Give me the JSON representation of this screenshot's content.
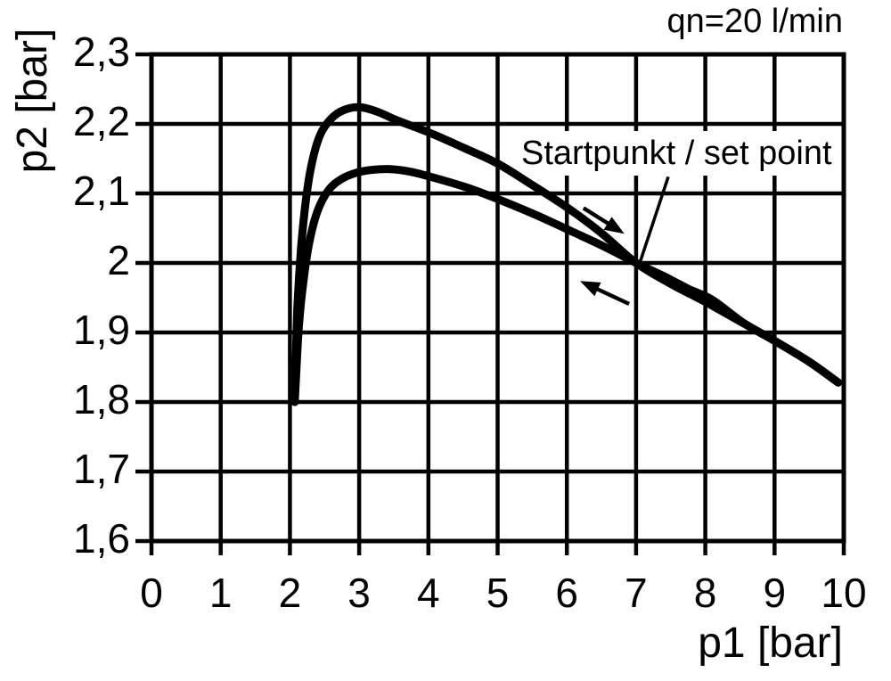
{
  "page": {
    "background": "#ffffff",
    "foreground": "#000000"
  },
  "chart_data": {
    "type": "line",
    "title": "qn=20 l/min",
    "xlabel": "p1 [bar]",
    "ylabel": "p2 [bar]",
    "xlim": [
      0,
      10
    ],
    "ylim": [
      1.6,
      2.3
    ],
    "grid": true,
    "legend": "none",
    "line_color": "#000000",
    "x_tick_values": [
      0,
      1,
      2,
      3,
      4,
      5,
      6,
      7,
      8,
      9,
      10
    ],
    "x_tick_labels": [
      "0",
      "1",
      "2",
      "3",
      "4",
      "5",
      "6",
      "7",
      "8",
      "9",
      "10"
    ],
    "y_tick_values": [
      1.6,
      1.7,
      1.8,
      1.9,
      2.0,
      2.1,
      2.2,
      2.3
    ],
    "y_tick_labels": [
      "1,6",
      "1,7",
      "1,8",
      "1,9",
      "2",
      "2,1",
      "2,2",
      "2,3"
    ],
    "set_point": [
      7,
      2.0
    ],
    "annotation": {
      "text": "Startpunkt / set point",
      "leader_from": [
        7.465,
        2.124
      ],
      "target": [
        7.06,
        2.002
      ]
    },
    "series": [
      {
        "name": "upper-curve-increasing-p1",
        "points": [
          [
            2.07,
            1.8
          ],
          [
            2.085,
            1.86
          ],
          [
            2.11,
            1.94
          ],
          [
            2.16,
            2.02
          ],
          [
            2.23,
            2.09
          ],
          [
            2.32,
            2.145
          ],
          [
            2.44,
            2.185
          ],
          [
            2.6,
            2.208
          ],
          [
            2.78,
            2.22
          ],
          [
            3.0,
            2.224
          ],
          [
            3.25,
            2.218
          ],
          [
            3.55,
            2.205
          ],
          [
            4.0,
            2.188
          ],
          [
            4.5,
            2.166
          ],
          [
            5.0,
            2.143
          ],
          [
            5.5,
            2.112
          ],
          [
            6.0,
            2.08
          ],
          [
            6.5,
            2.043
          ],
          [
            7.0,
            2.0
          ],
          [
            7.5,
            1.97
          ],
          [
            8.0,
            1.944
          ],
          [
            8.5,
            1.916
          ],
          [
            9.0,
            1.888
          ],
          [
            9.5,
            1.858
          ],
          [
            9.92,
            1.828
          ]
        ]
      },
      {
        "name": "lower-curve-decreasing-p1",
        "points": [
          [
            2.07,
            1.8
          ],
          [
            2.095,
            1.85
          ],
          [
            2.13,
            1.91
          ],
          [
            2.19,
            1.97
          ],
          [
            2.28,
            2.03
          ],
          [
            2.4,
            2.075
          ],
          [
            2.56,
            2.105
          ],
          [
            2.75,
            2.121
          ],
          [
            2.97,
            2.13
          ],
          [
            3.2,
            2.134
          ],
          [
            3.45,
            2.135
          ],
          [
            3.75,
            2.131
          ],
          [
            4.1,
            2.122
          ],
          [
            4.6,
            2.107
          ],
          [
            5.1,
            2.088
          ],
          [
            5.6,
            2.067
          ],
          [
            6.1,
            2.044
          ],
          [
            6.55,
            2.023
          ],
          [
            7.0,
            2.0
          ],
          [
            7.4,
            1.981
          ],
          [
            7.75,
            1.963
          ],
          [
            8.1,
            1.947
          ],
          [
            8.55,
            1.914
          ],
          [
            9.0,
            1.888
          ],
          [
            9.5,
            1.858
          ],
          [
            9.92,
            1.828
          ]
        ]
      }
    ],
    "arrows": [
      {
        "name": "forward-direction-arrow",
        "from": [
          6.24,
          2.079
        ],
        "tip": [
          6.83,
          2.042
        ]
      },
      {
        "name": "return-direction-arrow",
        "from": [
          6.9,
          1.941
        ],
        "tip": [
          6.19,
          1.974
        ]
      }
    ]
  }
}
